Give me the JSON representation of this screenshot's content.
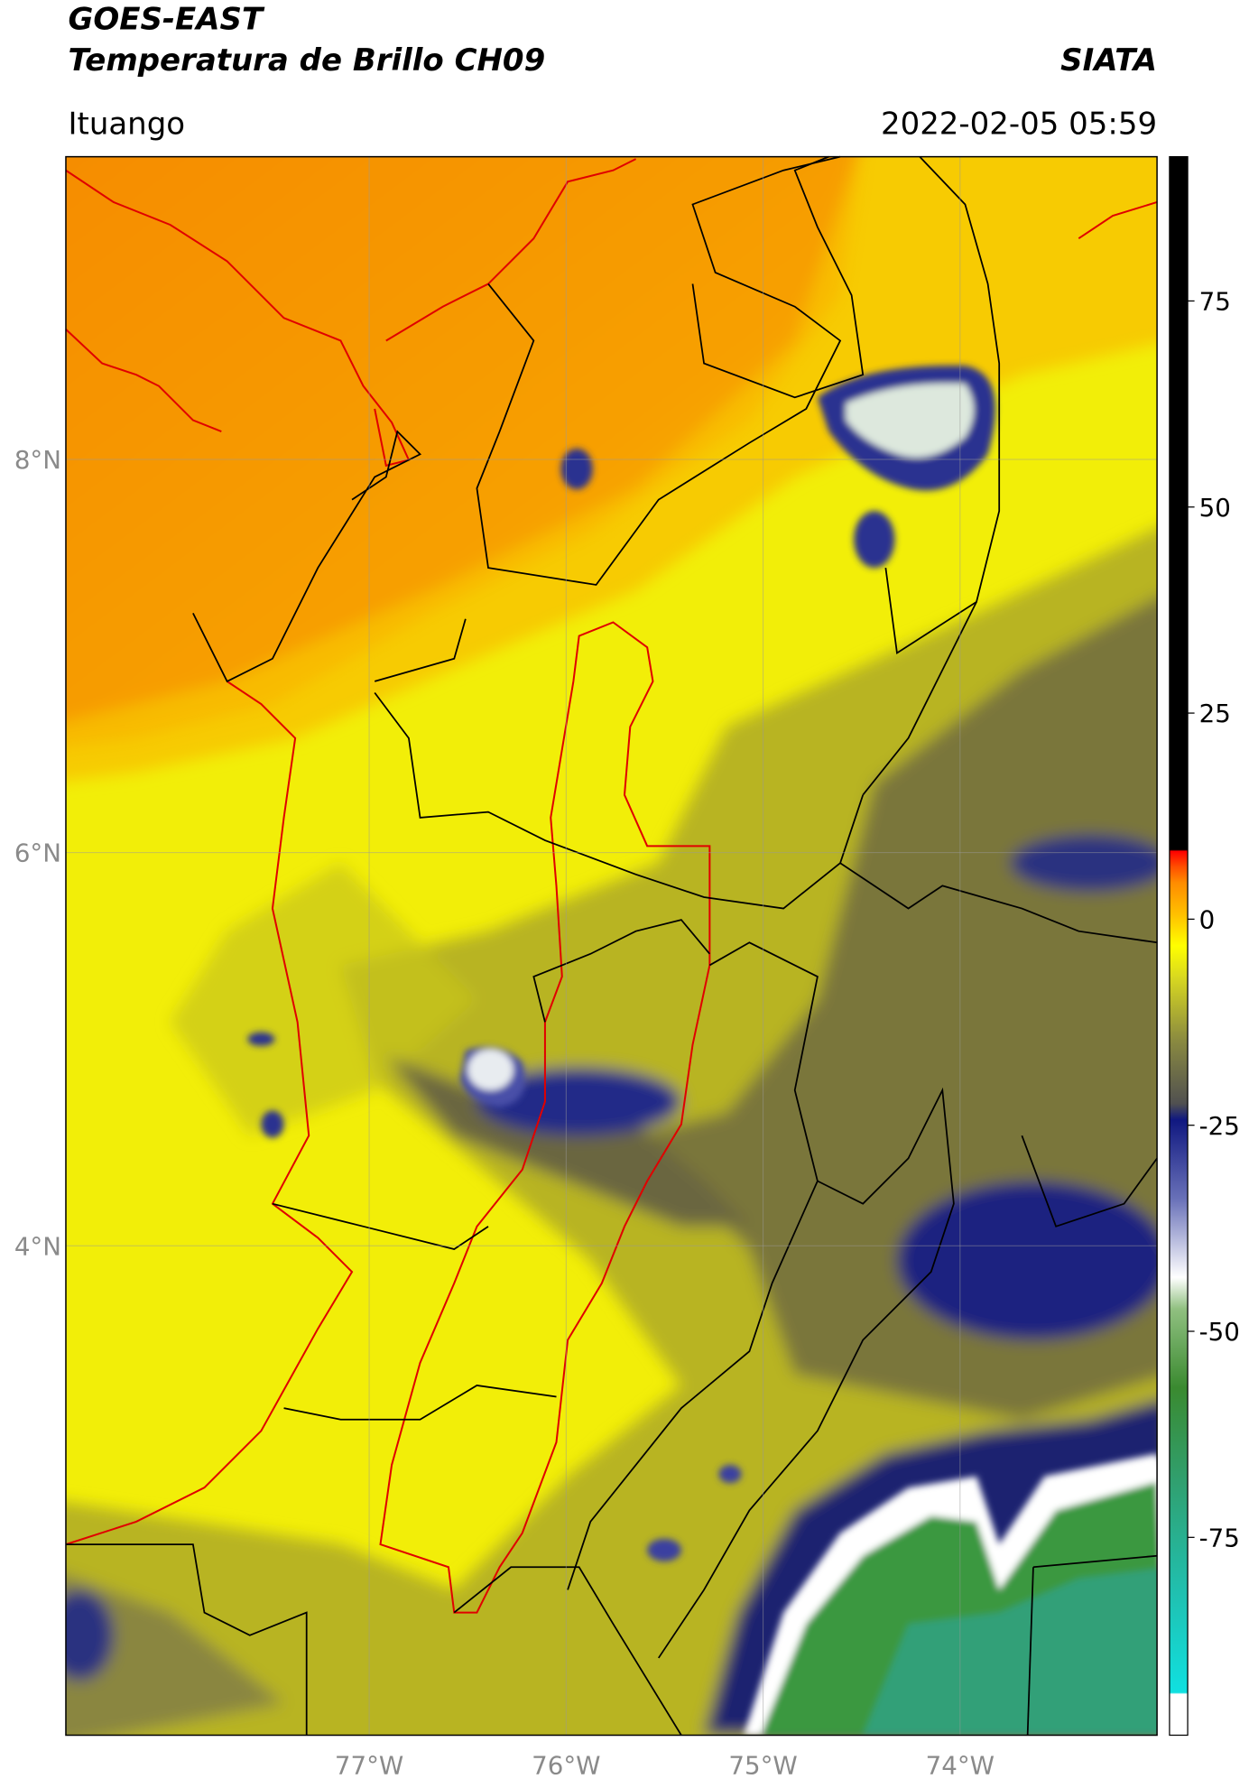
{
  "header": {
    "title": "GOES-EAST",
    "subtitle": "Temperatura de Brillo CH09",
    "brand": "SIATA",
    "location": "Ituango",
    "datetime": "2022-02-05 05:59"
  },
  "map": {
    "xlim": [
      -78.54,
      -73.0
    ],
    "ylim": [
      1.51,
      9.54
    ],
    "xticks": [
      {
        "value": -77,
        "label": "77°W"
      },
      {
        "value": -76,
        "label": "76°W"
      },
      {
        "value": -75,
        "label": "75°W"
      },
      {
        "value": -74,
        "label": "74°W"
      }
    ],
    "yticks": [
      {
        "value": 8,
        "label": "8°N"
      },
      {
        "value": 6,
        "label": "6°N"
      },
      {
        "value": 4,
        "label": "4°N"
      }
    ],
    "grid": true
  },
  "colorbar": {
    "lim": [
      -99,
      92.5
    ],
    "ticks": [
      75,
      50,
      25,
      0,
      -25,
      -50,
      -75
    ]
  }
}
